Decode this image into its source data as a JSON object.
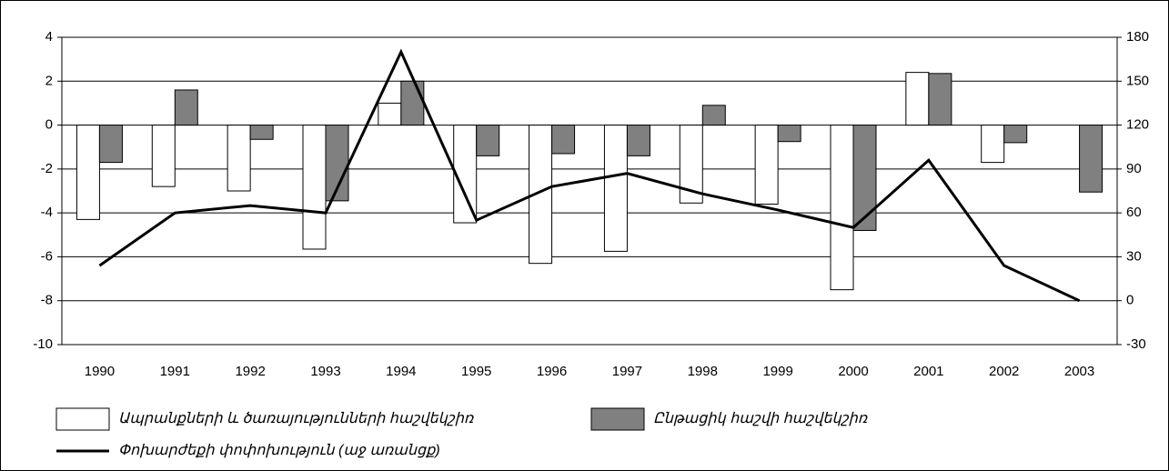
{
  "chart_data": {
    "type": "bar_line",
    "categories": [
      "1990",
      "1991",
      "1992",
      "1993",
      "1994",
      "1995",
      "1996",
      "1997",
      "1998",
      "1999",
      "2000",
      "2001",
      "2002",
      "2003"
    ],
    "series": [
      {
        "name": "Ապրանքների և ծառայությունների հաշվեկշիռ",
        "type": "bar",
        "color": "#ffffff",
        "values": [
          -4.3,
          -2.8,
          -3.0,
          -5.65,
          1.0,
          -4.45,
          -6.3,
          -5.75,
          -3.55,
          -3.6,
          -7.5,
          2.4,
          -1.7,
          null
        ]
      },
      {
        "name": "Ընթացիկ հաշվի հաշվեկշիռ",
        "type": "bar",
        "color": "#808080",
        "values": [
          -1.7,
          1.6,
          -0.65,
          -3.45,
          2.0,
          -1.4,
          -1.3,
          -1.4,
          0.9,
          -0.75,
          -4.8,
          2.35,
          -0.8,
          -3.05
        ]
      },
      {
        "name": "Փոխարժեքի փոփոխություն (աջ առանցք)",
        "type": "line",
        "color": "#000000",
        "axis": "y2",
        "values": [
          24,
          60,
          65,
          60,
          170,
          55,
          78,
          87,
          73,
          62,
          50,
          96,
          24,
          0
        ]
      }
    ],
    "ylim": [
      -10,
      4
    ],
    "yticks": [
      -10,
      -8,
      -6,
      -4,
      -2,
      0,
      2,
      4
    ],
    "y2lim": [
      -30,
      180
    ],
    "y2ticks": [
      -30,
      0,
      30,
      60,
      90,
      120,
      150,
      180
    ],
    "grid": true,
    "legend": "bottom"
  }
}
